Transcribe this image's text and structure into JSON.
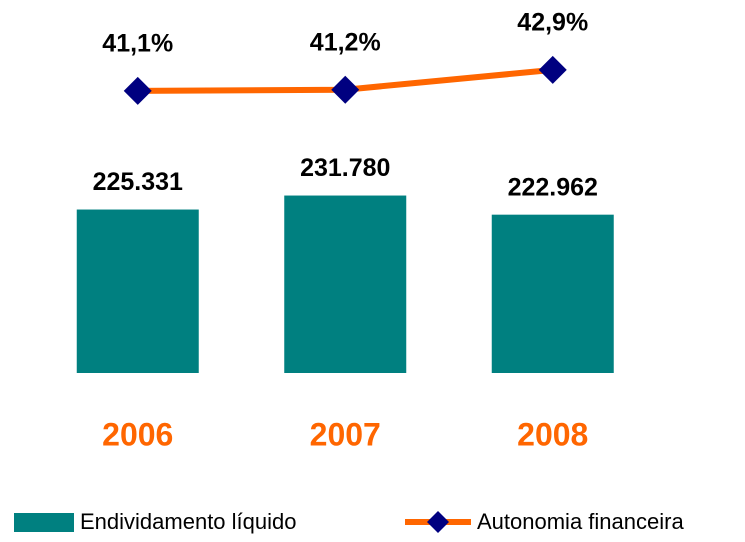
{
  "chart_data": {
    "type": "bar",
    "categories": [
      "2006",
      "2007",
      "2008"
    ],
    "category_color": "#ff6600",
    "series": [
      {
        "name": "Endividamento líquido",
        "type": "bar",
        "color": "#008080",
        "values": [
          225331,
          231780,
          222962
        ],
        "value_labels": [
          "225.331",
          "231.780",
          "222.962"
        ]
      },
      {
        "name": "Autonomia financeira",
        "type": "line",
        "axis": "y2",
        "color": "#ff6600",
        "marker_color": "#000080",
        "values": [
          41.1,
          41.2,
          42.9
        ],
        "value_labels": [
          "41,1%",
          "41,2%",
          "42,9%"
        ]
      }
    ],
    "ylim": [
      150000,
      250000
    ],
    "y2lim": [
      35,
      45
    ],
    "grid": false,
    "legend": "bottom"
  }
}
